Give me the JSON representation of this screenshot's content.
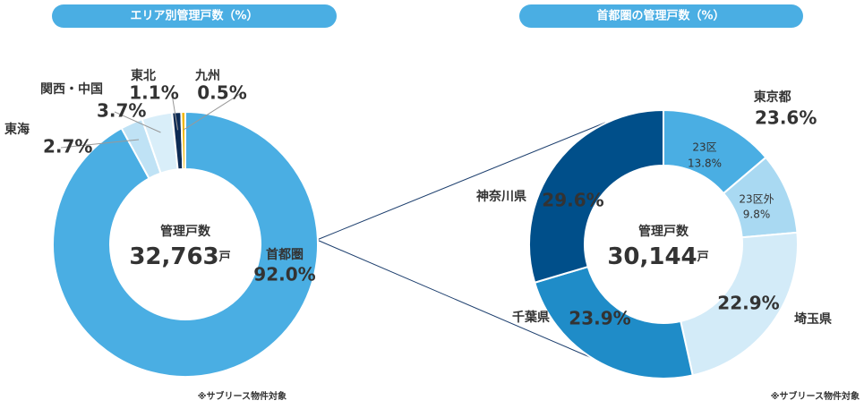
{
  "chart_data": [
    {
      "type": "donut",
      "title": "エリア別管理戸数（%）",
      "center_label": "管理戸数",
      "center_value": "32,763",
      "center_unit": "戸",
      "categories": [
        "首都圏",
        "東海",
        "関西・中国",
        "東北",
        "九州"
      ],
      "values": [
        92.0,
        2.7,
        3.7,
        1.1,
        0.5
      ],
      "value_labels": [
        "92.0%",
        "2.7%",
        "3.7%",
        "1.1%",
        "0.5%"
      ],
      "colors": [
        "#4aaee3",
        "#bfe2f5",
        "#d9eef9",
        "#0d2b55",
        "#f2b705"
      ],
      "note": "※サブリース物件対象"
    },
    {
      "type": "donut",
      "title": "首都圏の管理戸数（%）",
      "center_label": "管理戸数",
      "center_value": "30,144",
      "center_unit": "戸",
      "categories": [
        "23区",
        "23区外",
        "埼玉県",
        "千葉県",
        "神奈川県"
      ],
      "values": [
        13.8,
        9.8,
        22.9,
        23.9,
        29.6
      ],
      "value_labels": [
        "13.8%",
        "9.8%",
        "22.9%",
        "23.9%",
        "29.6%"
      ],
      "colors": [
        "#4aaee3",
        "#a9d9f2",
        "#d3ebf8",
        "#1f8cc8",
        "#004f8a"
      ],
      "group": {
        "name": "東京都",
        "value": 23.6,
        "value_label": "23.6%"
      },
      "note": "※サブリース物件対象"
    }
  ]
}
